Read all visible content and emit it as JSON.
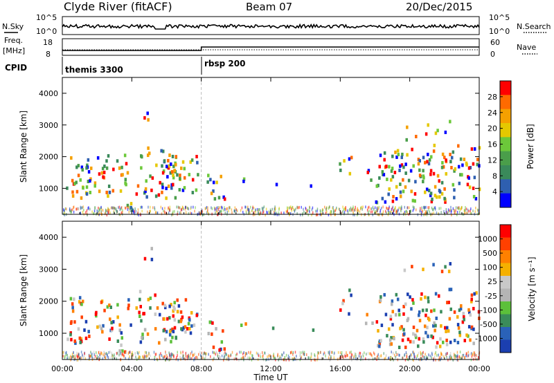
{
  "header": {
    "station": "Clyde River (fitACF)",
    "beam": "Beam 07",
    "date": "20/Dec/2015"
  },
  "top_panels": {
    "nsky_label": "N.Sky",
    "nsearch_label": "N.Search",
    "freq_label_1": "Freq.",
    "freq_label_2": "[MHz]",
    "nave_label": "Nave",
    "cpid_label": "CPID",
    "nsky_ticks": [
      "10^5",
      "10^0"
    ],
    "nsearch_ticks": [
      "10^5",
      "10^0"
    ],
    "freq_ticks": [
      "18",
      "8"
    ],
    "nave_ticks": [
      "60",
      "0"
    ],
    "cpid_segments": [
      {
        "name": "themis 3300",
        "start_hour": 0,
        "end_hour": 8
      },
      {
        "name": "rbsp 200",
        "start_hour": 8,
        "end_hour": 24
      }
    ]
  },
  "colors": {
    "power": [
      "#0000ff",
      "#2e5fb0",
      "#3a8a5a",
      "#4a9e4a",
      "#6cc83a",
      "#e5c800",
      "#f5a000",
      "#ff6a00",
      "#ff0000"
    ],
    "velocity": [
      "#1b3fb0",
      "#2a62b8",
      "#3a8c5a",
      "#5cc03a",
      "#b5b5b5",
      "#c8c8c8",
      "#f5b000",
      "#ff8000",
      "#ff4000",
      "#ff0000"
    ]
  },
  "chart_data": [
    {
      "type": "heatmap",
      "panel": "power",
      "ylabel": "Slant Range [km]",
      "y_ticks": [
        "4000",
        "3000",
        "2000",
        "1000"
      ],
      "ylim": [
        180,
        4500
      ],
      "x_ticks": [
        "00:00",
        "04:00",
        "08:00",
        "12:00",
        "16:00",
        "20:00",
        "00:00"
      ],
      "xlim_hours": [
        0,
        24
      ],
      "colorbar": {
        "label": "Power [dB]",
        "ticks": [
          "28",
          "24",
          "20",
          "16",
          "12",
          "8",
          "4"
        ],
        "range": [
          0,
          32
        ]
      }
    },
    {
      "type": "heatmap",
      "panel": "velocity",
      "ylabel": "Slant Range [km]",
      "y_ticks": [
        "4000",
        "3000",
        "2000",
        "1000"
      ],
      "ylim": [
        180,
        4500
      ],
      "x_ticks": [
        "00:00",
        "04:00",
        "08:00",
        "12:00",
        "16:00",
        "20:00",
        "00:00"
      ],
      "xlabel": "Time UT",
      "xlim_hours": [
        0,
        24
      ],
      "colorbar": {
        "label": "Velocity [m s⁻¹]",
        "ticks": [
          "1000",
          "500",
          "100",
          "25",
          "-25",
          "-100",
          "-500",
          "-1000"
        ]
      }
    }
  ]
}
